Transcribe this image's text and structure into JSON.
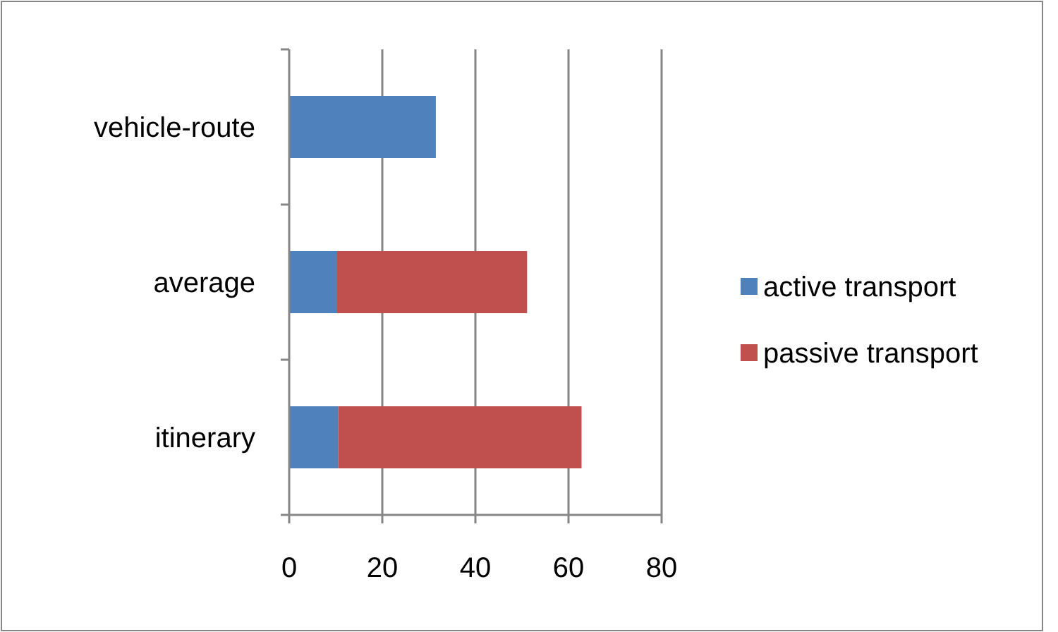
{
  "chart_data": {
    "type": "bar",
    "orientation": "horizontal",
    "stacked": true,
    "categories": [
      "vehicle-route",
      "average",
      "itinerary"
    ],
    "series": [
      {
        "name": "active transport",
        "color": "#4f81bd",
        "values": [
          31.5,
          10.3,
          10.5
        ]
      },
      {
        "name": "passive transport",
        "color": "#c0504d",
        "values": [
          null,
          40.8,
          52.3
        ]
      }
    ],
    "xlim": [
      0,
      80
    ],
    "xticks": [
      0,
      20,
      40,
      60,
      80
    ],
    "grid": "x",
    "legend": "right"
  }
}
